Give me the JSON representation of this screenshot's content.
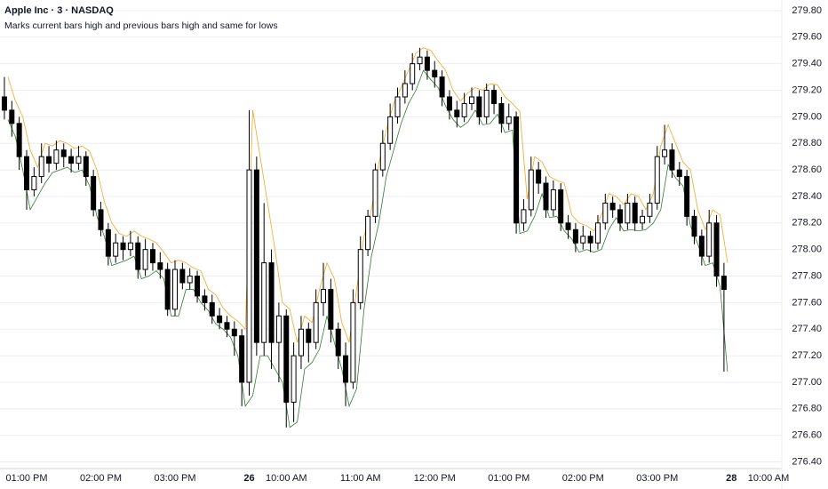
{
  "chart_data": {
    "type": "candlestick",
    "title": "Apple Inc · 3 · NASDAQ",
    "subtitle": "Marks current bars high and previous bars high and same for lows",
    "categories": [
      null,
      null,
      null,
      "01:00 PM",
      null,
      null,
      null,
      null,
      null,
      null,
      null,
      null,
      null,
      "02:00 PM",
      null,
      null,
      null,
      null,
      null,
      null,
      null,
      null,
      null,
      "03:00 PM",
      null,
      null,
      null,
      null,
      null,
      null,
      null,
      null,
      null,
      "26",
      null,
      null,
      null,
      null,
      "10:00 AM",
      null,
      null,
      null,
      null,
      null,
      null,
      null,
      null,
      null,
      "11:00 AM",
      null,
      null,
      null,
      null,
      null,
      null,
      null,
      null,
      null,
      "12:00 PM",
      null,
      null,
      null,
      null,
      null,
      null,
      null,
      null,
      null,
      "01:00 PM",
      null,
      null,
      null,
      null,
      null,
      null,
      null,
      null,
      null,
      "02:00 PM",
      null,
      null,
      null,
      null,
      null,
      null,
      null,
      null,
      null,
      "03:00 PM",
      null,
      null,
      null,
      null,
      null,
      null,
      null,
      null,
      null,
      "28",
      null,
      null,
      null,
      null,
      "10:00 AM"
    ],
    "open": [
      279.15,
      279.05,
      278.95,
      278.7,
      278.45,
      278.55,
      278.7,
      278.65,
      278.75,
      278.7,
      278.65,
      278.7,
      278.55,
      278.3,
      278.15,
      277.95,
      278.05,
      278.0,
      278.05,
      277.85,
      278.0,
      277.9,
      277.85,
      277.55,
      277.85,
      277.75,
      277.8,
      277.65,
      277.6,
      277.5,
      277.45,
      277.4,
      277.35,
      277.0,
      278.6,
      277.3,
      277.9,
      277.3,
      277.5,
      276.85,
      277.2,
      277.4,
      277.3,
      277.6,
      277.7,
      277.4,
      277.2,
      277.0,
      277.6,
      278.0,
      278.25,
      278.6,
      278.8,
      279.0,
      279.15,
      279.25,
      279.4,
      279.45,
      279.35,
      279.3,
      279.15,
      279.05,
      279.0,
      279.1,
      279.15,
      279.0,
      279.2,
      279.1,
      278.95,
      279.0,
      278.2,
      278.3,
      278.6,
      278.5,
      278.3,
      278.45,
      278.2,
      278.15,
      278.05,
      278.1,
      278.05,
      278.2,
      278.35,
      278.3,
      278.2,
      278.35,
      278.2,
      278.25,
      278.35,
      278.7,
      278.75,
      278.6,
      278.55,
      278.25,
      278.1,
      277.95,
      278.2,
      277.8,
      null,
      null,
      null,
      null,
      null,
      null
    ],
    "high": [
      279.3,
      279.12,
      279.0,
      278.75,
      278.62,
      278.8,
      278.78,
      278.82,
      278.8,
      278.76,
      278.78,
      278.74,
      278.6,
      278.36,
      278.2,
      278.12,
      278.1,
      278.14,
      278.1,
      278.08,
      278.05,
      277.98,
      277.9,
      277.92,
      277.9,
      277.86,
      277.84,
      277.7,
      277.66,
      277.56,
      277.5,
      277.46,
      277.4,
      279.05,
      278.7,
      278.35,
      278.0,
      277.6,
      277.55,
      277.3,
      277.5,
      277.45,
      277.7,
      277.9,
      277.78,
      277.45,
      277.3,
      277.7,
      278.1,
      278.3,
      278.65,
      278.9,
      279.1,
      279.22,
      279.35,
      279.48,
      279.52,
      279.5,
      279.42,
      279.35,
      279.2,
      279.12,
      279.18,
      279.22,
      279.2,
      279.25,
      279.24,
      279.15,
      279.1,
      279.04,
      278.38,
      278.7,
      278.66,
      278.55,
      278.52,
      278.5,
      278.26,
      278.2,
      278.18,
      278.14,
      278.26,
      278.42,
      278.4,
      278.34,
      278.42,
      278.4,
      278.3,
      278.42,
      278.78,
      278.94,
      278.8,
      278.66,
      278.6,
      278.3,
      278.15,
      278.3,
      278.26,
      277.9,
      null,
      null,
      null,
      null,
      null,
      null
    ],
    "low": [
      278.98,
      278.85,
      278.6,
      278.3,
      278.4,
      278.5,
      278.58,
      278.6,
      278.62,
      278.58,
      278.6,
      278.48,
      278.25,
      278.1,
      277.88,
      277.9,
      277.92,
      277.95,
      277.78,
      277.8,
      277.84,
      277.78,
      277.5,
      277.5,
      277.7,
      277.7,
      277.6,
      277.54,
      277.44,
      277.4,
      277.34,
      277.2,
      276.82,
      276.9,
      277.2,
      277.2,
      277.1,
      277.0,
      276.66,
      276.7,
      277.1,
      277.15,
      277.25,
      277.5,
      277.3,
      277.1,
      276.82,
      276.95,
      277.55,
      277.95,
      278.2,
      278.55,
      278.75,
      278.95,
      279.1,
      279.2,
      279.35,
      279.28,
      279.22,
      279.08,
      278.98,
      278.92,
      278.96,
      279.05,
      278.94,
      278.95,
      279.02,
      278.88,
      278.9,
      278.12,
      278.14,
      278.25,
      278.42,
      278.24,
      278.25,
      278.14,
      278.08,
      277.98,
      278.0,
      277.98,
      278.0,
      278.15,
      278.24,
      278.14,
      278.15,
      278.14,
      278.15,
      278.2,
      278.3,
      278.64,
      278.54,
      278.48,
      278.18,
      278.04,
      277.88,
      277.9,
      277.72,
      277.08,
      null,
      null,
      null,
      null,
      null,
      null
    ],
    "close": [
      279.05,
      278.95,
      278.7,
      278.45,
      278.55,
      278.7,
      278.65,
      278.75,
      278.7,
      278.65,
      278.7,
      278.55,
      278.3,
      278.15,
      277.95,
      278.05,
      278.0,
      278.05,
      277.85,
      278.0,
      277.9,
      277.85,
      277.55,
      277.85,
      277.75,
      277.8,
      277.65,
      277.6,
      277.5,
      277.45,
      277.4,
      277.35,
      277.0,
      278.6,
      277.3,
      277.9,
      277.3,
      277.5,
      276.85,
      277.2,
      277.4,
      277.3,
      277.6,
      277.7,
      277.4,
      277.2,
      277.0,
      277.6,
      278.0,
      278.25,
      278.6,
      278.8,
      279.0,
      279.15,
      279.25,
      279.4,
      279.45,
      279.35,
      279.3,
      279.15,
      279.05,
      279.0,
      279.1,
      279.15,
      279.0,
      279.2,
      279.1,
      278.95,
      279.0,
      278.2,
      278.3,
      278.6,
      278.5,
      278.3,
      278.45,
      278.2,
      278.15,
      278.05,
      278.1,
      278.05,
      278.2,
      278.35,
      278.3,
      278.2,
      278.35,
      278.2,
      278.25,
      278.35,
      278.7,
      278.75,
      278.6,
      278.55,
      278.25,
      278.1,
      277.95,
      278.2,
      277.8,
      277.7,
      null,
      null,
      null,
      null,
      null,
      null
    ],
    "up_color": "#ffffff",
    "down_color": "#000000",
    "wick_color": "#000000",
    "high_color": "#f5a623",
    "low_color": "#2e7d32",
    "ylim": [
      276.35,
      279.88
    ],
    "yticks": [
      {
        "value": 276.4,
        "label": "276.40"
      },
      {
        "value": 276.6,
        "label": "276.60"
      },
      {
        "value": 276.8,
        "label": "276.80"
      },
      {
        "value": 277.0,
        "label": "277.00"
      },
      {
        "value": 277.2,
        "label": "277.20"
      },
      {
        "value": 277.4,
        "label": "277.40"
      },
      {
        "value": 277.6,
        "label": "277.60"
      },
      {
        "value": 277.8,
        "label": "277.80"
      },
      {
        "value": 278.0,
        "label": "278.00"
      },
      {
        "value": 278.2,
        "label": "278.20"
      },
      {
        "value": 278.4,
        "label": "278.40"
      },
      {
        "value": 278.6,
        "label": "278.60"
      },
      {
        "value": 278.8,
        "label": "278.80"
      },
      {
        "value": 279.0,
        "label": "279.00"
      },
      {
        "value": 279.2,
        "label": "279.20"
      },
      {
        "value": 279.4,
        "label": "279.40"
      },
      {
        "value": 279.6,
        "label": "279.60"
      },
      {
        "value": 279.8,
        "label": "279.80"
      }
    ],
    "grid": true
  }
}
